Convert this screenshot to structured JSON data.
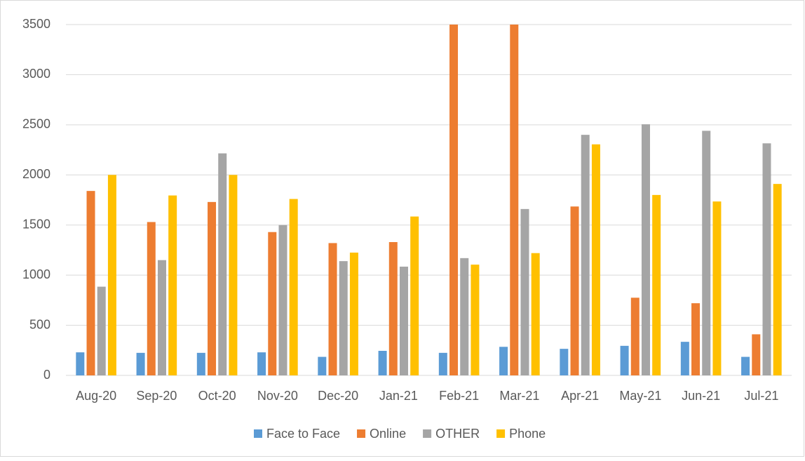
{
  "chart_data": {
    "type": "bar",
    "categories": [
      "Aug-20",
      "Sep-20",
      "Oct-20",
      "Nov-20",
      "Dec-20",
      "Jan-21",
      "Feb-21",
      "Mar-21",
      "Apr-21",
      "May-21",
      "Jun-21",
      "Jul-21"
    ],
    "series": [
      {
        "name": "Face to Face",
        "color": "#5b9bd5",
        "values": [
          230,
          225,
          225,
          230,
          185,
          245,
          225,
          285,
          265,
          295,
          335,
          185
        ]
      },
      {
        "name": "Online",
        "color": "#ed7d31",
        "values": [
          1840,
          1530,
          1730,
          1430,
          1320,
          1330,
          3500,
          3500,
          1685,
          775,
          720,
          410
        ]
      },
      {
        "name": "OTHER",
        "color": "#a5a5a5",
        "values": [
          885,
          1150,
          2215,
          1500,
          1140,
          1085,
          1170,
          1660,
          2400,
          2505,
          2440,
          2315
        ]
      },
      {
        "name": "Phone",
        "color": "#ffc000",
        "values": [
          2000,
          1795,
          2000,
          1760,
          1225,
          1585,
          1105,
          1220,
          2305,
          1800,
          1735,
          1910
        ]
      }
    ],
    "ylim": [
      0,
      3500
    ],
    "yticks": [
      0,
      500,
      1000,
      1500,
      2000,
      2500,
      3000,
      3500
    ],
    "grid": true,
    "legend": "bottom"
  }
}
